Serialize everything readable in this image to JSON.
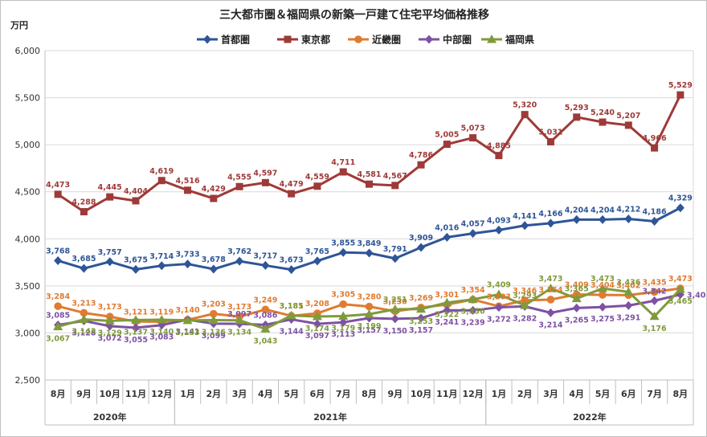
{
  "chart_data": {
    "type": "line",
    "title": "三大都市圏＆福岡県の新築一戸建て住宅平均価格推移",
    "ylabel": "万円",
    "ylim": [
      2500,
      6000
    ],
    "yticks": [
      2500,
      3000,
      3500,
      4000,
      4500,
      5000,
      5500,
      6000
    ],
    "ytick_labels": [
      "2,500",
      "3,000",
      "3,500",
      "4,000",
      "4,500",
      "5,000",
      "5,500",
      "6,000"
    ],
    "grid": "horizontal",
    "legend_position": "top",
    "categories": [
      "8月",
      "9月",
      "10月",
      "11月",
      "12月",
      "1月",
      "2月",
      "3月",
      "4月",
      "5月",
      "6月",
      "7月",
      "8月",
      "9月",
      "10月",
      "11月",
      "12月",
      "1月",
      "2月",
      "3月",
      "4月",
      "5月",
      "6月",
      "7月",
      "8月"
    ],
    "year_groups": [
      {
        "label": "2020年",
        "start": 0,
        "end": 4
      },
      {
        "label": "2021年",
        "start": 5,
        "end": 16
      },
      {
        "label": "2022年",
        "start": 17,
        "end": 24
      }
    ],
    "series": [
      {
        "name": "首都圏",
        "color": "#2e5597",
        "marker": "diamond",
        "values": [
          3768,
          3685,
          3757,
          3675,
          3714,
          3733,
          3678,
          3762,
          3717,
          3673,
          3765,
          3855,
          3849,
          3791,
          3909,
          4016,
          4057,
          4093,
          4141,
          4166,
          4204,
          4204,
          4212,
          4186,
          4329
        ],
        "labels": [
          "3,768",
          "3,685",
          "3,757",
          "3,675",
          "3,714",
          "3,733",
          "3,678",
          "3,762",
          "3,717",
          "3,673",
          "3,765",
          "3,855",
          "3,849",
          "3,791",
          "3,909",
          "4,016",
          "4,057",
          "4,093",
          "4,141",
          "4,166",
          "4,204",
          "4,204",
          "4,212",
          "4,186",
          "4,329"
        ],
        "label_pos": [
          "above",
          "above",
          "above",
          "above",
          "above",
          "above",
          "above",
          "above",
          "above",
          "above",
          "above",
          "above",
          "above",
          "above",
          "above",
          "above",
          "above",
          "above",
          "above",
          "above",
          "above",
          "above",
          "above",
          "above",
          "above"
        ]
      },
      {
        "name": "東京都",
        "color": "#9e3a38",
        "marker": "square",
        "values": [
          4473,
          4288,
          4445,
          4404,
          4619,
          4516,
          4429,
          4555,
          4597,
          4479,
          4559,
          4711,
          4581,
          4567,
          4786,
          5005,
          5073,
          4885,
          5320,
          5031,
          5293,
          5240,
          5207,
          4966,
          5529
        ],
        "labels": [
          "4,473",
          "4,288",
          "4,445",
          "4,404",
          "4,619",
          "4,516",
          "4,429",
          "4,555",
          "4,597",
          "4,479",
          "4,559",
          "4,711",
          "4,581",
          "4,567",
          "4,786",
          "5,005",
          "5,073",
          "4,885",
          "5,320",
          "5,031",
          "5,293",
          "5,240",
          "5,207",
          "4,966",
          "5,529"
        ],
        "label_pos": [
          "above",
          "above",
          "above",
          "above",
          "above",
          "above",
          "above",
          "above",
          "above",
          "above",
          "above",
          "above",
          "above",
          "above",
          "above",
          "above",
          "above",
          "above",
          "above",
          "above",
          "above",
          "above",
          "above",
          "above",
          "above"
        ]
      },
      {
        "name": "近畿圏",
        "color": "#e07b30",
        "marker": "circle",
        "values": [
          3284,
          3213,
          3173,
          3121,
          3119,
          3140,
          3203,
          3173,
          3249,
          3181,
          3208,
          3305,
          3280,
          3230,
          3269,
          3301,
          3354,
          3283,
          3346,
          3354,
          3409,
          3404,
          3402,
          3435,
          3473
        ],
        "labels": [
          "3,284",
          "3,213",
          "3,173",
          "3,121",
          "3,119",
          "3,140",
          "3,203",
          "3,173",
          "3,249",
          "3,181",
          "3,208",
          "3,305",
          "3,280",
          "3,230",
          "3,269",
          "3,301",
          "3,354",
          "3,283",
          "3,346",
          "3,354",
          "3,409",
          "3,404",
          "3,402",
          "3,435",
          "3,473"
        ],
        "label_pos": [
          "above",
          "above",
          "above",
          "above",
          "above",
          "above",
          "above",
          "above",
          "above",
          "above",
          "above",
          "above",
          "above",
          "above",
          "above",
          "above",
          "above",
          "above",
          "above",
          "above",
          "above",
          "above",
          "above",
          "above",
          "above"
        ]
      },
      {
        "name": "中部圏",
        "color": "#7e51a3",
        "marker": "diamond",
        "values": [
          3085,
          3128,
          3072,
          3055,
          3083,
          3141,
          3099,
          3097,
          3086,
          3144,
          3097,
          3113,
          3157,
          3150,
          3157,
          3241,
          3239,
          3272,
          3282,
          3214,
          3265,
          3275,
          3291,
          3342,
          3408
        ],
        "labels": [
          "3,085",
          "3,128",
          "3,072",
          "3,055",
          "3,083",
          "3,141",
          "3,099",
          "3,097",
          "3,086",
          "3,144",
          "3,097",
          "3,113",
          "3,157",
          "3,150",
          "3,157",
          "3,241",
          "3,239",
          "3,272",
          "3,282",
          "3,214",
          "3,265",
          "3,275",
          "3,291",
          "3,342",
          "3,408"
        ],
        "label_pos": [
          "above",
          "below",
          "below",
          "below",
          "below",
          "below",
          "below",
          "above",
          "above",
          "below",
          "below",
          "below",
          "below",
          "below",
          "below",
          "below",
          "below",
          "below",
          "below",
          "below",
          "below",
          "below",
          "below",
          "above",
          "right"
        ]
      },
      {
        "name": "福岡県",
        "color": "#7f9a3c",
        "marker": "triangle",
        "values": [
          3067,
          3143,
          3129,
          3137,
          3140,
          3133,
          3136,
          3134,
          3043,
          3185,
          3174,
          3179,
          3199,
          3251,
          3253,
          3322,
          3356,
          3409,
          3293,
          3473,
          3365,
          3473,
          3436,
          3176,
          3465
        ],
        "labels": [
          "3,067",
          "3,143",
          "3,129",
          "3,137",
          "3,140",
          "3,133",
          "3,136",
          "3,134",
          "3,043",
          "3,185",
          "3,174",
          "3,179",
          "3,199",
          "3,251",
          "3,253",
          "3,322",
          "3,356",
          "3,409",
          "3,293",
          "3,473",
          "3,365",
          "3,473",
          "3,436",
          "3,176",
          "3,465"
        ],
        "label_pos": [
          "below",
          "below",
          "below",
          "below",
          "below",
          "below",
          "below",
          "below",
          "below",
          "above",
          "below",
          "below",
          "below",
          "above",
          "below",
          "below",
          "below",
          "above",
          "above",
          "above",
          "above",
          "above",
          "above",
          "below",
          "below"
        ]
      }
    ]
  }
}
